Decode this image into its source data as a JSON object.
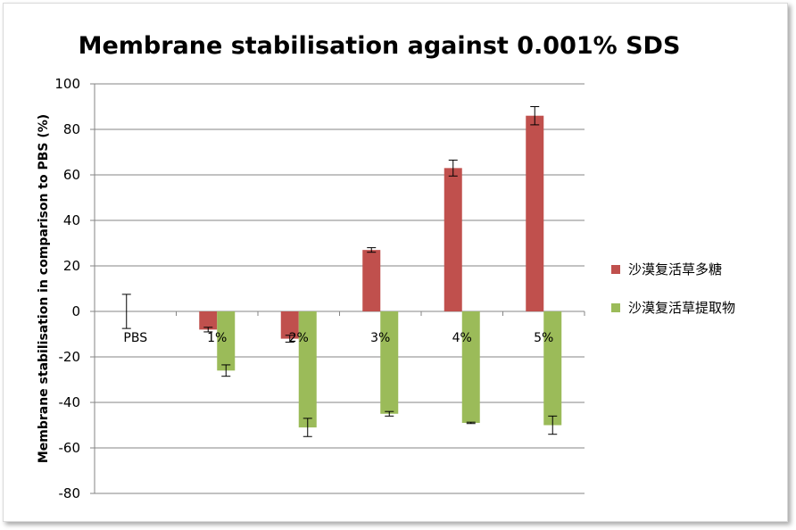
{
  "chart_data": {
    "type": "bar",
    "title": "Membrane stabilisation against 0.001% SDS",
    "xlabel": "",
    "ylabel": "Membrane stabilisation in comparison to PBS (%)",
    "ylim": [
      -80,
      100
    ],
    "yticks": [
      100,
      80,
      60,
      40,
      20,
      0,
      -20,
      -40,
      -60,
      -80
    ],
    "grid": true,
    "legend_position": "right",
    "categories": [
      "PBS",
      "1%",
      "2%",
      "3%",
      "4%",
      "5%"
    ],
    "series": [
      {
        "name": "沙漠复活草多糖",
        "color": "#c0504d",
        "values": [
          0,
          -8,
          -12,
          27,
          63,
          86
        ],
        "errors": [
          7.5,
          1,
          1.5,
          1,
          3.5,
          4
        ]
      },
      {
        "name": "沙漠复活草提取物",
        "color": "#9bbb59",
        "values": [
          null,
          -26,
          -51,
          -45,
          -49,
          -50
        ],
        "errors": [
          null,
          2.5,
          4,
          1,
          0.3,
          4
        ]
      }
    ]
  }
}
